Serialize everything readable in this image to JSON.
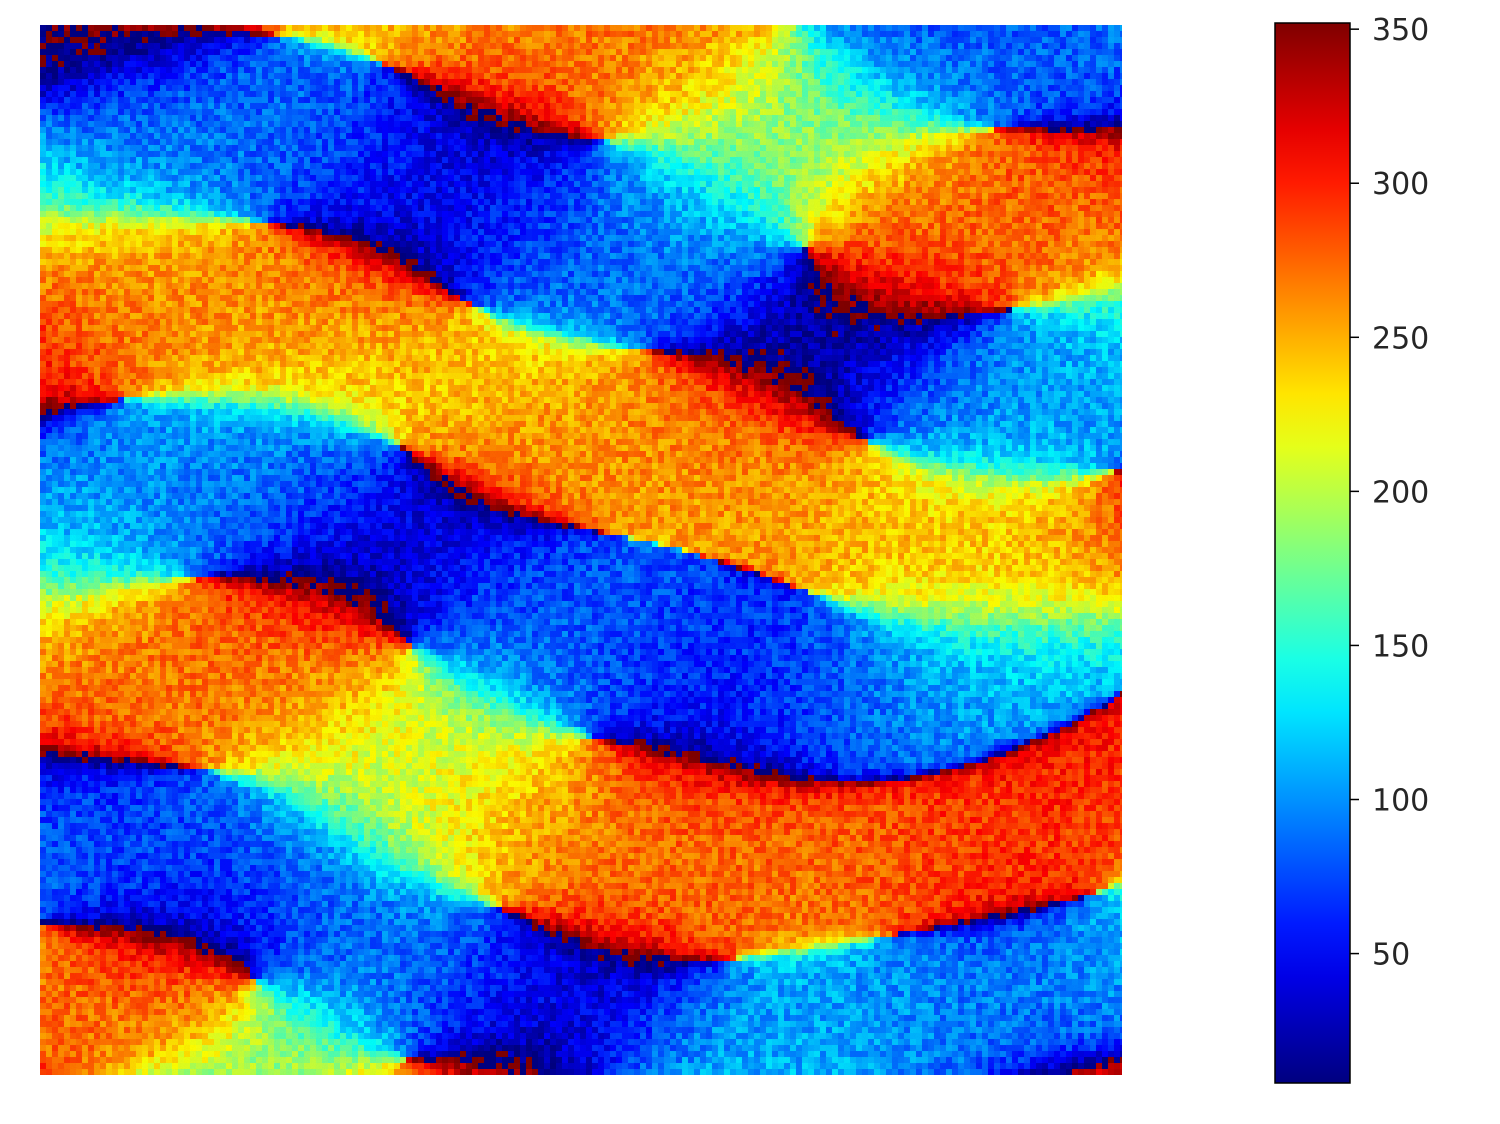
{
  "chart_data": {
    "type": "heatmap",
    "title": "",
    "xlabel": "",
    "ylabel": "",
    "axes_visible": false,
    "colormap": "jet",
    "colorbar": {
      "placement": "right",
      "vmin": 8,
      "vmax": 352,
      "ticks": [
        50,
        100,
        150,
        200,
        250,
        300,
        350
      ],
      "tick_labels": [
        "50",
        "100",
        "150",
        "200",
        "250",
        "300",
        "350"
      ]
    },
    "value_meaning_units": "",
    "texture": "hillshade-like raster of angular values"
  }
}
